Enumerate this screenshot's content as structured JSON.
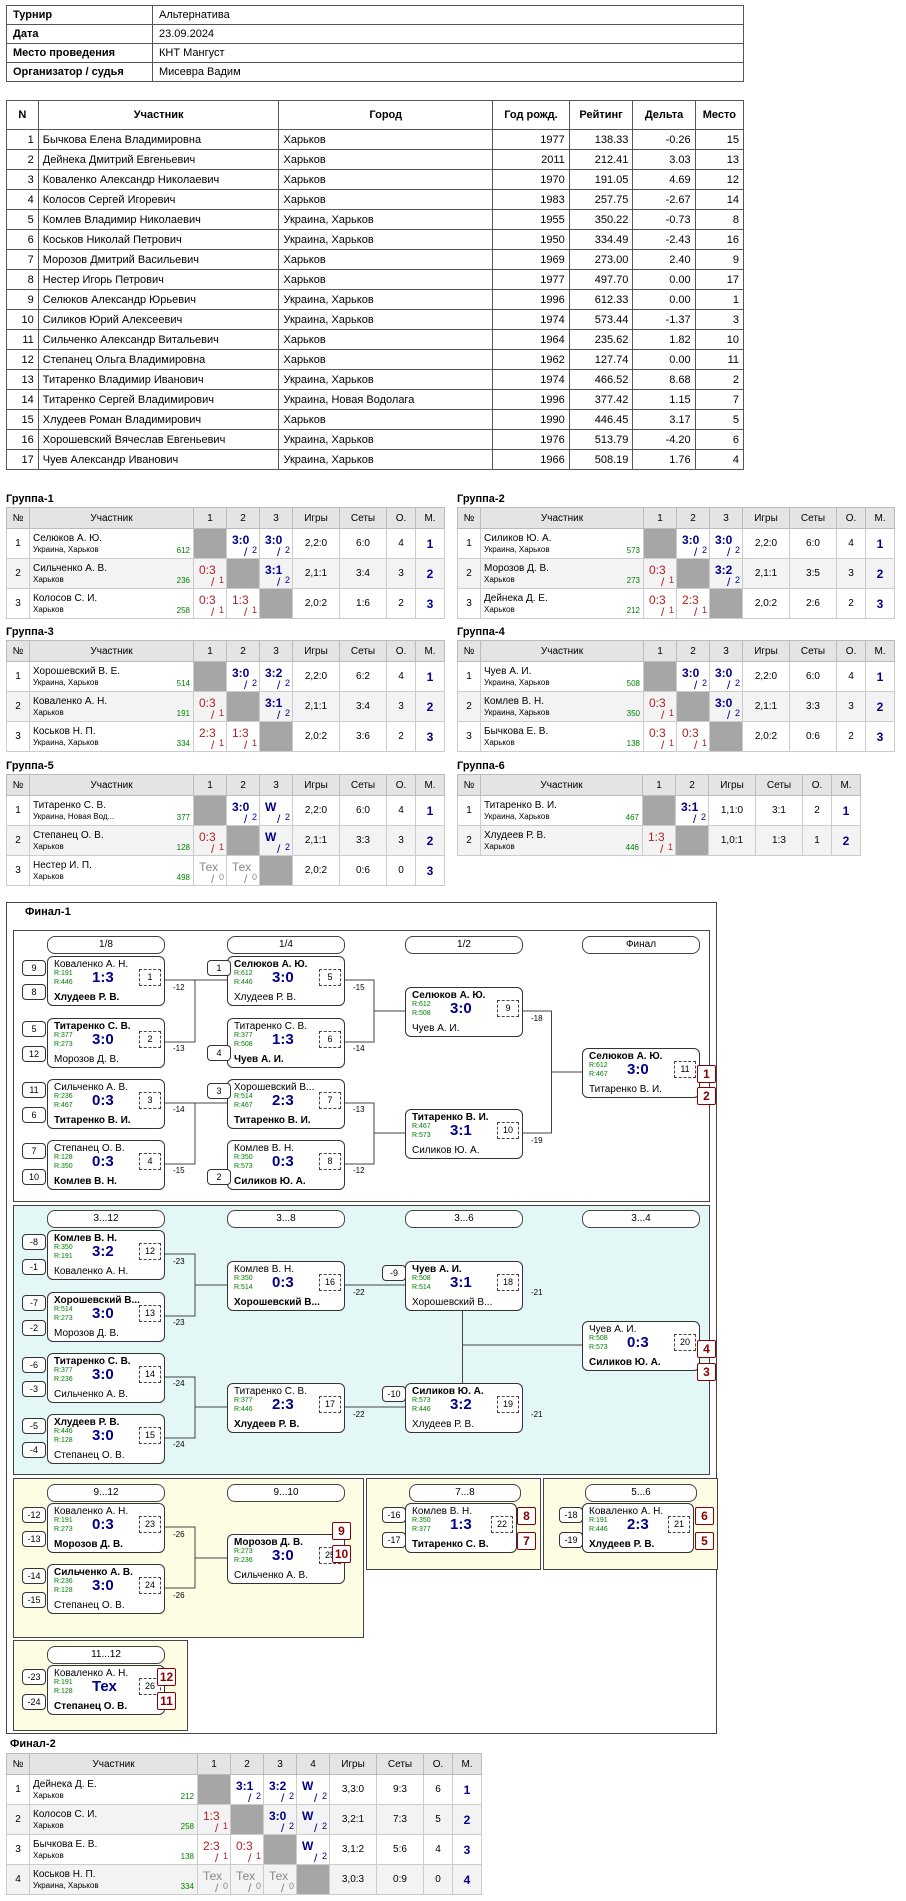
{
  "tournament": {
    "k1": "Турнир",
    "v1": "Альтернатива",
    "k2": "Дата",
    "v2": "23.09.2024",
    "k3": "Место проведения",
    "v3": "КНТ Мангуст",
    "k4": "Организатор / судья",
    "v4": "Мисевра Вадим"
  },
  "players": {
    "headers": [
      "N",
      "Участник",
      "Город",
      "Год рожд.",
      "Рейтинг",
      "Дельта",
      "Место"
    ],
    "rows": [
      [
        "1",
        "Бычкова Елена Владимировна",
        "Харьков",
        "1977",
        "138.33",
        "-0.26",
        "15"
      ],
      [
        "2",
        "Дейнека Дмитрий Евгеньевич",
        "Харьков",
        "2011",
        "212.41",
        "3.03",
        "13"
      ],
      [
        "3",
        "Коваленко Александр Николаевич",
        "Харьков",
        "1970",
        "191.05",
        "4.69",
        "12"
      ],
      [
        "4",
        "Колосов Сергей Игоревич",
        "Харьков",
        "1983",
        "257.75",
        "-2.67",
        "14"
      ],
      [
        "5",
        "Комлев Владимир Николаевич",
        "Украина, Харьков",
        "1955",
        "350.22",
        "-0.73",
        "8"
      ],
      [
        "6",
        "Коськов Николай Петрович",
        "Украина, Харьков",
        "1950",
        "334.49",
        "-2.43",
        "16"
      ],
      [
        "7",
        "Морозов Дмитрий Васильевич",
        "Харьков",
        "1969",
        "273.00",
        "2.40",
        "9"
      ],
      [
        "8",
        "Нестер Игорь Петрович",
        "Харьков",
        "1977",
        "497.70",
        "0.00",
        "17"
      ],
      [
        "9",
        "Селюков Александр Юрьевич",
        "Украина, Харьков",
        "1996",
        "612.33",
        "0.00",
        "1"
      ],
      [
        "10",
        "Силиков Юрий Алексеевич",
        "Украина, Харьков",
        "1974",
        "573.44",
        "-1.37",
        "3"
      ],
      [
        "11",
        "Сильченко Александр Витальевич",
        "Харьков",
        "1964",
        "235.62",
        "1.82",
        "10"
      ],
      [
        "12",
        "Степанец Ольга Владимировна",
        "Харьков",
        "1962",
        "127.74",
        "0.00",
        "11"
      ],
      [
        "13",
        "Титаренко Владимир Иванович",
        "Украина, Харьков",
        "1974",
        "466.52",
        "8.68",
        "2"
      ],
      [
        "14",
        "Титаренко Сергей Владимирович",
        "Украина, Новая Водолага",
        "1996",
        "377.42",
        "1.15",
        "7"
      ],
      [
        "15",
        "Хлудеев Роман Владимирович",
        "Харьков",
        "1990",
        "446.45",
        "3.17",
        "5"
      ],
      [
        "16",
        "Хорошевский Вячеслав Евгеньевич",
        "Украина, Харьков",
        "1976",
        "513.79",
        "-4.20",
        "6"
      ],
      [
        "17",
        "Чуев Александр Иванович",
        "Украина, Харьков",
        "1966",
        "508.19",
        "1.76",
        "4"
      ]
    ]
  },
  "group_headers": {
    "num": "№",
    "name": "Участник",
    "games": "Игры",
    "sets": "Сеты",
    "points": "О.",
    "place": "М."
  },
  "groups": [
    {
      "title": "Группа-1",
      "cols": [
        "1",
        "2",
        "3"
      ],
      "rows": [
        {
          "n": "1",
          "name": "Селюков А. Ю.",
          "city": "Украина, Харьков",
          "rating": "612",
          "cells": [
            null,
            [
              "3:0",
              "2",
              "w"
            ],
            [
              "3:0",
              "2",
              "w"
            ]
          ],
          "games": "2,2:0",
          "sets": "6:0",
          "points": "4",
          "place": "1"
        },
        {
          "n": "2",
          "name": "Сильченко А. В.",
          "city": "Харьков",
          "rating": "236",
          "cells": [
            [
              "0:3",
              "1",
              "l"
            ],
            null,
            [
              "3:1",
              "2",
              "w"
            ]
          ],
          "games": "2,1:1",
          "sets": "3:4",
          "points": "3",
          "place": "2"
        },
        {
          "n": "3",
          "name": "Колосов С. И.",
          "city": "Харьков",
          "rating": "258",
          "cells": [
            [
              "0:3",
              "1",
              "l"
            ],
            [
              "1:3",
              "1",
              "l"
            ],
            null
          ],
          "games": "2,0:2",
          "sets": "1:6",
          "points": "2",
          "place": "3"
        }
      ]
    },
    {
      "title": "Группа-2",
      "cols": [
        "1",
        "2",
        "3"
      ],
      "rows": [
        {
          "n": "1",
          "name": "Силиков Ю. А.",
          "city": "Украина, Харьков",
          "rating": "573",
          "cells": [
            null,
            [
              "3:0",
              "2",
              "w"
            ],
            [
              "3:0",
              "2",
              "w"
            ]
          ],
          "games": "2,2:0",
          "sets": "6:0",
          "points": "4",
          "place": "1"
        },
        {
          "n": "2",
          "name": "Морозов Д. В.",
          "city": "Харьков",
          "rating": "273",
          "cells": [
            [
              "0:3",
              "1",
              "l"
            ],
            null,
            [
              "3:2",
              "2",
              "w"
            ]
          ],
          "games": "2,1:1",
          "sets": "3:5",
          "points": "3",
          "place": "2"
        },
        {
          "n": "3",
          "name": "Дейнека Д. Е.",
          "city": "Харьков",
          "rating": "212",
          "cells": [
            [
              "0:3",
              "1",
              "l"
            ],
            [
              "2:3",
              "1",
              "l"
            ],
            null
          ],
          "games": "2,0:2",
          "sets": "2:6",
          "points": "2",
          "place": "3"
        }
      ]
    },
    {
      "title": "Группа-3",
      "cols": [
        "1",
        "2",
        "3"
      ],
      "rows": [
        {
          "n": "1",
          "name": "Хорошевский В. Е.",
          "city": "Украина, Харьков",
          "rating": "514",
          "cells": [
            null,
            [
              "3:0",
              "2",
              "w"
            ],
            [
              "3:2",
              "2",
              "w"
            ]
          ],
          "games": "2,2:0",
          "sets": "6:2",
          "points": "4",
          "place": "1"
        },
        {
          "n": "2",
          "name": "Коваленко А. Н.",
          "city": "Харьков",
          "rating": "191",
          "cells": [
            [
              "0:3",
              "1",
              "l"
            ],
            null,
            [
              "3:1",
              "2",
              "w"
            ]
          ],
          "games": "2,1:1",
          "sets": "3:4",
          "points": "3",
          "place": "2"
        },
        {
          "n": "3",
          "name": "Коськов Н. П.",
          "city": "Украина, Харьков",
          "rating": "334",
          "cells": [
            [
              "2:3",
              "1",
              "l"
            ],
            [
              "1:3",
              "1",
              "l"
            ],
            null
          ],
          "games": "2,0:2",
          "sets": "3:6",
          "points": "2",
          "place": "3"
        }
      ]
    },
    {
      "title": "Группа-4",
      "cols": [
        "1",
        "2",
        "3"
      ],
      "rows": [
        {
          "n": "1",
          "name": "Чуев А. И.",
          "city": "Украина, Харьков",
          "rating": "508",
          "cells": [
            null,
            [
              "3:0",
              "2",
              "w"
            ],
            [
              "3:0",
              "2",
              "w"
            ]
          ],
          "games": "2,2:0",
          "sets": "6:0",
          "points": "4",
          "place": "1"
        },
        {
          "n": "2",
          "name": "Комлев В. Н.",
          "city": "Украина, Харьков",
          "rating": "350",
          "cells": [
            [
              "0:3",
              "1",
              "l"
            ],
            null,
            [
              "3:0",
              "2",
              "w"
            ]
          ],
          "games": "2,1:1",
          "sets": "3:3",
          "points": "3",
          "place": "2"
        },
        {
          "n": "3",
          "name": "Бычкова Е. В.",
          "city": "Харьков",
          "rating": "138",
          "cells": [
            [
              "0:3",
              "1",
              "l"
            ],
            [
              "0:3",
              "1",
              "l"
            ],
            null
          ],
          "games": "2,0:2",
          "sets": "0:6",
          "points": "2",
          "place": "3"
        }
      ]
    },
    {
      "title": "Группа-5",
      "cols": [
        "1",
        "2",
        "3"
      ],
      "rows": [
        {
          "n": "1",
          "name": "Титаренко С. В.",
          "city": "Украина, Новая Вод...",
          "rating": "377",
          "cells": [
            null,
            [
              "3:0",
              "2",
              "w"
            ],
            [
              "W",
              "2",
              "w"
            ]
          ],
          "games": "2,2:0",
          "sets": "6:0",
          "points": "4",
          "place": "1"
        },
        {
          "n": "2",
          "name": "Степанец О. В.",
          "city": "Харьков",
          "rating": "128",
          "cells": [
            [
              "0:3",
              "1",
              "l"
            ],
            null,
            [
              "W",
              "2",
              "w"
            ]
          ],
          "games": "2,1:1",
          "sets": "3:3",
          "points": "3",
          "place": "2"
        },
        {
          "n": "3",
          "name": "Нестер И. П.",
          "city": "Харьков",
          "rating": "498",
          "cells": [
            [
              "Тех",
              "0",
              "tex"
            ],
            [
              "Тех",
              "0",
              "tex"
            ],
            null
          ],
          "games": "2,0:2",
          "sets": "0:6",
          "points": "0",
          "place": "3"
        }
      ]
    },
    {
      "title": "Группа-6",
      "cols": [
        "1",
        "2"
      ],
      "rows": [
        {
          "n": "1",
          "name": "Титаренко В. И.",
          "city": "Украина, Харьков",
          "rating": "467",
          "cells": [
            null,
            [
              "3:1",
              "2",
              "w"
            ]
          ],
          "games": "1,1:0",
          "sets": "3:1",
          "points": "2",
          "place": "1"
        },
        {
          "n": "2",
          "name": "Хлудеев Р. В.",
          "city": "Харьков",
          "rating": "446",
          "cells": [
            [
              "1:3",
              "1",
              "l"
            ],
            null
          ],
          "games": "1,0:1",
          "sets": "1:3",
          "points": "1",
          "place": "2"
        }
      ]
    },
    {
      "title": "Финал-2",
      "cols": [
        "1",
        "2",
        "3",
        "4"
      ],
      "rows": [
        {
          "n": "1",
          "name": "Дейнека Д. Е.",
          "city": "Харьков",
          "rating": "212",
          "cells": [
            null,
            [
              "3:1",
              "2",
              "w"
            ],
            [
              "3:2",
              "2",
              "w"
            ],
            [
              "W",
              "2",
              "w"
            ]
          ],
          "games": "3,3:0",
          "sets": "9:3",
          "points": "6",
          "place": "1"
        },
        {
          "n": "2",
          "name": "Колосов С. И.",
          "city": "Харьков",
          "rating": "258",
          "cells": [
            [
              "1:3",
              "1",
              "l"
            ],
            null,
            [
              "3:0",
              "2",
              "w"
            ],
            [
              "W",
              "2",
              "w"
            ]
          ],
          "games": "3,2:1",
          "sets": "7:3",
          "points": "5",
          "place": "2"
        },
        {
          "n": "3",
          "name": "Бычкова Е. В.",
          "city": "Харьков",
          "rating": "138",
          "cells": [
            [
              "2:3",
              "1",
              "l"
            ],
            [
              "0:3",
              "1",
              "l"
            ],
            null,
            [
              "W",
              "2",
              "w"
            ]
          ],
          "games": "3,1:2",
          "sets": "5:6",
          "points": "4",
          "place": "3"
        },
        {
          "n": "4",
          "name": "Коськов Н. П.",
          "city": "Украина, Харьков",
          "rating": "334",
          "cells": [
            [
              "Тех",
              "0",
              "tex"
            ],
            [
              "Тех",
              "0",
              "tex"
            ],
            [
              "Тех",
              "0",
              "tex"
            ],
            null
          ],
          "games": "3,0:3",
          "sets": "0:9",
          "points": "0",
          "place": "4"
        }
      ]
    }
  ],
  "final1": {
    "title": "Финал-1",
    "stages": [
      "1/8",
      "1/4",
      "1/2",
      "Финал",
      "3...12",
      "3...8",
      "3...6",
      "3...4",
      "9...12",
      "9...10",
      "7...8",
      "5...6",
      "11...12"
    ],
    "matches": [
      {
        "p1": "Коваленко А. Н.",
        "r1": "R:191",
        "p2": "Хлудеев Р. В.",
        "r2": "R:446",
        "score": "1:3",
        "num": "1",
        "win": 2
      },
      {
        "p1": "Титаренко С. В.",
        "r1": "R:377",
        "p2": "Морозов Д. В.",
        "r2": "R:273",
        "score": "3:0",
        "num": "2",
        "win": 1
      },
      {
        "p1": "Сильченко А. В.",
        "r1": "R:236",
        "p2": "Титаренко В. И.",
        "r2": "R:467",
        "score": "0:3",
        "num": "3",
        "win": 2
      },
      {
        "p1": "Степанец О. В.",
        "r1": "R:128",
        "p2": "Комлев В. Н.",
        "r2": "R:350",
        "score": "0:3",
        "num": "4",
        "win": 2
      },
      {
        "p1": "Селюков А. Ю.",
        "r1": "R:612",
        "p2": "Хлудеев Р. В.",
        "r2": "R:446",
        "score": "3:0",
        "num": "5",
        "win": 1
      },
      {
        "p1": "Титаренко С. В.",
        "r1": "R:377",
        "p2": "Чуев А. И.",
        "r2": "R:508",
        "score": "1:3",
        "num": "6",
        "win": 2
      },
      {
        "p1": "Хорошевский В...",
        "r1": "R:514",
        "p2": "Титаренко В. И.",
        "r2": "R:467",
        "score": "2:3",
        "num": "7",
        "win": 2
      },
      {
        "p1": "Комлев В. Н.",
        "r1": "R:350",
        "p2": "Силиков Ю. А.",
        "r2": "R:573",
        "score": "0:3",
        "num": "8",
        "win": 2
      },
      {
        "p1": "Селюков А. Ю.",
        "r1": "R:612",
        "p2": "Чуев А. И.",
        "r2": "R:508",
        "score": "3:0",
        "num": "9",
        "win": 1
      },
      {
        "p1": "Титаренко В. И.",
        "r1": "R:467",
        "p2": "Силиков Ю. А.",
        "r2": "R:573",
        "score": "3:1",
        "num": "10",
        "win": 1
      },
      {
        "p1": "Селюков А. Ю.",
        "r1": "R:612",
        "p2": "Титаренко В. И.",
        "r2": "R:467",
        "score": "3:0",
        "num": "11",
        "win": 1
      },
      {
        "p1": "Комлев В. Н.",
        "r1": "R:350",
        "p2": "Коваленко А. Н.",
        "r2": "R:191",
        "score": "3:2",
        "num": "12",
        "win": 1
      },
      {
        "p1": "Хорошевский В...",
        "r1": "R:514",
        "p2": "Морозов Д. В.",
        "r2": "R:273",
        "score": "3:0",
        "num": "13",
        "win": 1
      },
      {
        "p1": "Титаренко С. В.",
        "r1": "R:377",
        "p2": "Сильченко А. В.",
        "r2": "R:236",
        "score": "3:0",
        "num": "14",
        "win": 1
      },
      {
        "p1": "Хлудеев Р. В.",
        "r1": "R:446",
        "p2": "Степанец О. В.",
        "r2": "R:128",
        "score": "3:0",
        "num": "15",
        "win": 1
      },
      {
        "p1": "Комлев В. Н.",
        "r1": "R:350",
        "p2": "Хорошевский В...",
        "r2": "R:514",
        "score": "0:3",
        "num": "16",
        "win": 2
      },
      {
        "p1": "Титаренко С. В.",
        "r1": "R:377",
        "p2": "Хлудеев Р. В.",
        "r2": "R:446",
        "score": "2:3",
        "num": "17",
        "win": 2
      },
      {
        "p1": "Чуев А. И.",
        "r1": "R:508",
        "p2": "Хорошевский В...",
        "r2": "R:514",
        "score": "3:1",
        "num": "18",
        "win": 1
      },
      {
        "p1": "Силиков Ю. А.",
        "r1": "R:573",
        "p2": "Хлудеев Р. В.",
        "r2": "R:446",
        "score": "3:2",
        "num": "19",
        "win": 1
      },
      {
        "p1": "Чуев А. И.",
        "r1": "R:508",
        "p2": "Силиков Ю. А.",
        "r2": "R:573",
        "score": "0:3",
        "num": "20",
        "win": 2
      },
      {
        "p1": "Коваленко А. Н.",
        "r1": "R:191",
        "p2": "Хлудеев Р. В.",
        "r2": "R:446",
        "score": "2:3",
        "num": "21",
        "win": 2
      },
      {
        "p1": "Комлев В. Н.",
        "r1": "R:350",
        "p2": "Титаренко С. В.",
        "r2": "R:377",
        "score": "1:3",
        "num": "22",
        "win": 2
      },
      {
        "p1": "Коваленко А. Н.",
        "r1": "R:191",
        "p2": "Морозов Д. В.",
        "r2": "R:273",
        "score": "0:3",
        "num": "23",
        "win": 2
      },
      {
        "p1": "Сильченко А. В.",
        "r1": "R:236",
        "p2": "Степанец О. В.",
        "r2": "R:128",
        "score": "3:0",
        "num": "24",
        "win": 1
      },
      {
        "p1": "Морозов Д. В.",
        "r1": "R:273",
        "p2": "Сильченко А. В.",
        "r2": "R:236",
        "score": "3:0",
        "num": "25",
        "win": 1
      },
      {
        "p1": "Коваленко А. Н.",
        "r1": "R:191",
        "p2": "Степанец О. В.",
        "r2": "R:128",
        "score": "Тех",
        "num": "26",
        "win": 2
      }
    ],
    "seeds": [
      "9",
      "8",
      "5",
      "12",
      "11",
      "6",
      "7",
      "10",
      "1",
      "4",
      "3",
      "2",
      "-8",
      "-1",
      "-7",
      "-2",
      "-6",
      "-3",
      "-5",
      "-4",
      "-9",
      "-10",
      "-12",
      "-13",
      "-14",
      "-15",
      "-16",
      "-17",
      "-18",
      "-19",
      "-23",
      "-24"
    ],
    "labels": [
      "-12",
      "-13",
      "-14",
      "-15",
      "-15",
      "-14",
      "-13",
      "-12",
      "-18",
      "-19",
      "-23",
      "-23",
      "-24",
      "-24",
      "-22",
      "-22",
      "-21",
      "-21",
      "-26",
      "-26"
    ],
    "places": [
      "1",
      "2",
      "4",
      "3",
      "9",
      "10",
      "8",
      "7",
      "6",
      "5",
      "12",
      "11"
    ]
  }
}
